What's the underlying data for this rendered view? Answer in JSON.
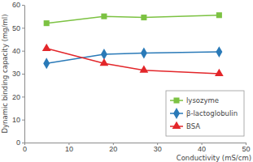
{
  "chart_data": {
    "type": "line",
    "x_label": "Conductivity (mS/cm)",
    "y_label": "Dynamic binding capacity (mg/ml)",
    "x": [
      5,
      18,
      27,
      44
    ],
    "series": [
      {
        "name": "lysozyme",
        "color": "#7cc242",
        "marker": "square",
        "values": [
          52,
          55,
          54.5,
          55.5
        ]
      },
      {
        "name": "β-lactoglobulin",
        "color": "#2a7ab8",
        "marker": "diamond",
        "values": [
          34.5,
          38.5,
          39,
          39.5
        ]
      },
      {
        "name": "BSA",
        "color": "#e3262a",
        "marker": "triangle",
        "values": [
          41,
          34.5,
          31.5,
          30
        ]
      }
    ],
    "xlim": [
      0,
      50
    ],
    "xticks": [
      0,
      10,
      20,
      30,
      40,
      50
    ],
    "ylim": [
      0,
      60
    ],
    "yticks": [
      0,
      10,
      20,
      30,
      40,
      50,
      60
    ],
    "grid": false,
    "legend": "lower right"
  }
}
